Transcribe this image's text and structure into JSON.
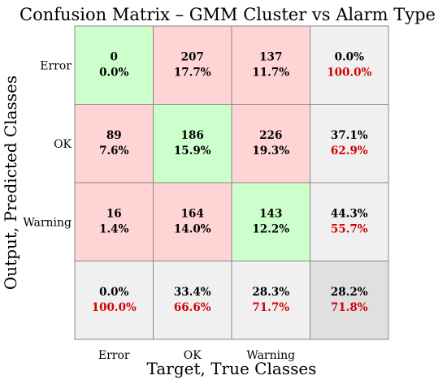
{
  "chart_data": {
    "type": "heatmap",
    "title": "Confusion Matrix – GMM Cluster vs Alarm Type",
    "xlabel": "Target, True Classes",
    "ylabel": "Output, Predicted Classes",
    "x_categories": [
      "Error",
      "OK",
      "Warning"
    ],
    "y_categories": [
      "Error",
      "OK",
      "Warning"
    ],
    "cells": [
      [
        {
          "count": "0",
          "pct": "0.0%"
        },
        {
          "count": "207",
          "pct": "17.7%"
        },
        {
          "count": "137",
          "pct": "11.7%"
        }
      ],
      [
        {
          "count": "89",
          "pct": "7.6%"
        },
        {
          "count": "186",
          "pct": "15.9%"
        },
        {
          "count": "226",
          "pct": "19.3%"
        }
      ],
      [
        {
          "count": "16",
          "pct": "1.4%"
        },
        {
          "count": "164",
          "pct": "14.0%"
        },
        {
          "count": "143",
          "pct": "12.2%"
        }
      ]
    ],
    "row_summary": [
      {
        "correct": "0.0%",
        "error": "100.0%"
      },
      {
        "correct": "37.1%",
        "error": "62.9%"
      },
      {
        "correct": "44.3%",
        "error": "55.7%"
      }
    ],
    "col_summary": [
      {
        "correct": "0.0%",
        "error": "100.0%"
      },
      {
        "correct": "33.4%",
        "error": "66.6%"
      },
      {
        "correct": "28.3%",
        "error": "71.7%"
      }
    ],
    "total": {
      "correct": "28.2%",
      "error": "71.8%"
    },
    "colors": {
      "correct_cell": "#ccffcc",
      "incorrect_cell": "#ffd4d4",
      "summary_cell": "#f0f0f0",
      "total_cell": "#e0e0e0",
      "grid": "#888888",
      "error_text": "#d40000"
    }
  }
}
